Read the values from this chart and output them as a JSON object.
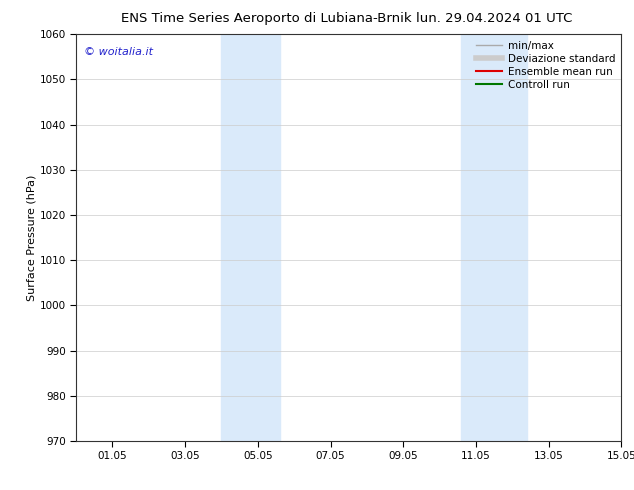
{
  "title_left": "ENS Time Series Aeroporto di Lubiana-Brnik",
  "title_right": "lun. 29.04.2024 01 UTC",
  "ylabel": "Surface Pressure (hPa)",
  "xlim": [
    0,
    14
  ],
  "ylim": [
    970,
    1060
  ],
  "yticks": [
    970,
    980,
    990,
    1000,
    1010,
    1020,
    1030,
    1040,
    1050,
    1060
  ],
  "xtick_labels": [
    "01.05",
    "03.05",
    "05.05",
    "07.05",
    "09.05",
    "11.05",
    "13.05",
    "15.05"
  ],
  "xtick_positions": [
    1,
    3,
    5,
    7,
    9,
    11,
    13,
    15
  ],
  "shaded_bands": [
    {
      "x_start": 4.0,
      "x_end": 5.6
    },
    {
      "x_start": 10.6,
      "x_end": 12.4
    }
  ],
  "shaded_color": "#daeafa",
  "background_color": "#ffffff",
  "watermark_text": "© woitalia.it",
  "watermark_color": "#2222cc",
  "legend_entries": [
    {
      "label": "min/max",
      "color": "#aaaaaa",
      "lw": 1.0
    },
    {
      "label": "Deviazione standard",
      "color": "#cccccc",
      "lw": 4
    },
    {
      "label": "Ensemble mean run",
      "color": "#dd0000",
      "lw": 1.5
    },
    {
      "label": "Controll run",
      "color": "#007700",
      "lw": 1.5
    }
  ],
  "title_fontsize": 9.5,
  "axis_label_fontsize": 8,
  "tick_fontsize": 7.5,
  "legend_fontsize": 7.5,
  "watermark_fontsize": 8
}
